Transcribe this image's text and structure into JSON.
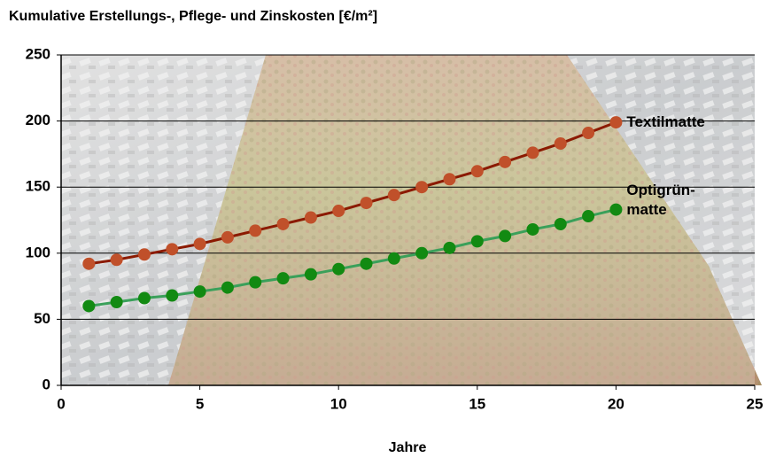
{
  "chart_data": {
    "type": "line",
    "title": "Kumulative Erstellungs-, Pflege- und Zinskosten [€/m²]",
    "x_label": "Jahre",
    "x": [
      1,
      2,
      3,
      4,
      5,
      6,
      7,
      8,
      9,
      10,
      11,
      12,
      13,
      14,
      15,
      16,
      17,
      18,
      19,
      20
    ],
    "series": [
      {
        "name": "Textilmatte",
        "color": "#8b1a00",
        "marker_color": "#c0502a",
        "values": [
          92,
          95,
          99,
          103,
          107,
          112,
          117,
          122,
          127,
          132,
          138,
          144,
          150,
          156,
          162,
          169,
          176,
          183,
          191,
          199
        ]
      },
      {
        "name": "Optigrün-matte",
        "color": "#3aa05a",
        "marker_color": "#128a12",
        "values": [
          60,
          63,
          66,
          68,
          71,
          74,
          78,
          81,
          84,
          88,
          92,
          96,
          100,
          104,
          109,
          113,
          118,
          122,
          128,
          133
        ]
      }
    ],
    "xlim": [
      0,
      25
    ],
    "xticks": [
      0,
      5,
      10,
      15,
      20,
      25
    ],
    "ylim": [
      0,
      250
    ],
    "yticks": [
      0,
      50,
      100,
      150,
      200,
      250
    ],
    "grid": true
  }
}
